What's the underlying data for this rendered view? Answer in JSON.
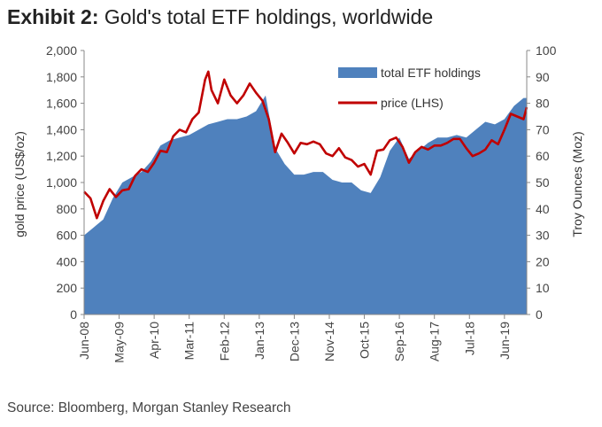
{
  "header": {
    "exhibit": "Exhibit 2:",
    "title": "Gold's total ETF holdings, worldwide"
  },
  "footer": {
    "source": "Source: Bloomberg, Morgan Stanley Research"
  },
  "chart_data": {
    "type": "area",
    "ylabel_left": "gold price (US$/oz)",
    "ylabel_right": "Troy Ounces (Moz)",
    "ylim_left": [
      0,
      2000
    ],
    "ylim_right": [
      0,
      100
    ],
    "yticks_left": [
      "0",
      "200",
      "400",
      "600",
      "800",
      "1,000",
      "1,200",
      "1,400",
      "1,600",
      "1,800",
      "2,000"
    ],
    "yticks_right": [
      "0",
      "10",
      "20",
      "30",
      "40",
      "50",
      "60",
      "70",
      "80",
      "90",
      "100"
    ],
    "xticks": [
      "Jun-08",
      "May-09",
      "Apr-10",
      "Mar-11",
      "Feb-12",
      "Jan-13",
      "Dec-13",
      "Nov-14",
      "Oct-15",
      "Sep-16",
      "Aug-17",
      "Jul-18",
      "Jun-19"
    ],
    "xrange": [
      "2008-06",
      "2020-01"
    ],
    "legend_position": "top-right",
    "colors": {
      "area": "#4f81bd",
      "line": "#c00000",
      "axis": "#888888"
    },
    "series": [
      {
        "name": "total ETF holdings",
        "axis": "right",
        "style": "area",
        "x": [
          "2008-06",
          "2008-09",
          "2008-12",
          "2009-03",
          "2009-06",
          "2009-09",
          "2009-12",
          "2010-03",
          "2010-06",
          "2010-09",
          "2010-12",
          "2011-03",
          "2011-06",
          "2011-09",
          "2011-12",
          "2012-03",
          "2012-06",
          "2012-09",
          "2012-12",
          "2013-03",
          "2013-06",
          "2013-09",
          "2013-12",
          "2014-03",
          "2014-06",
          "2014-09",
          "2014-12",
          "2015-03",
          "2015-06",
          "2015-09",
          "2015-12",
          "2016-03",
          "2016-06",
          "2016-09",
          "2016-12",
          "2017-03",
          "2017-06",
          "2017-09",
          "2017-12",
          "2018-03",
          "2018-06",
          "2018-09",
          "2018-12",
          "2019-03",
          "2019-06",
          "2019-09",
          "2019-12",
          "2020-01"
        ],
        "values": [
          30,
          33,
          36,
          44,
          50,
          52,
          54,
          58,
          64,
          66,
          67,
          68,
          70,
          72,
          73,
          74,
          74,
          75,
          77,
          83,
          63,
          57,
          53,
          53,
          54,
          54,
          51,
          50,
          50,
          47,
          46,
          52,
          62,
          67,
          59,
          62,
          65,
          67,
          67,
          68,
          67,
          70,
          73,
          72,
          74,
          79,
          82,
          82
        ]
      },
      {
        "name": "price (LHS)",
        "axis": "left",
        "style": "line",
        "x": [
          "2008-06",
          "2008-08",
          "2008-10",
          "2008-12",
          "2009-02",
          "2009-04",
          "2009-06",
          "2009-08",
          "2009-10",
          "2009-12",
          "2010-02",
          "2010-04",
          "2010-06",
          "2010-08",
          "2010-10",
          "2010-12",
          "2011-02",
          "2011-04",
          "2011-06",
          "2011-08",
          "2011-09",
          "2011-10",
          "2011-12",
          "2012-02",
          "2012-04",
          "2012-06",
          "2012-08",
          "2012-10",
          "2012-12",
          "2013-02",
          "2013-04",
          "2013-06",
          "2013-08",
          "2013-10",
          "2013-12",
          "2014-02",
          "2014-04",
          "2014-06",
          "2014-08",
          "2014-10",
          "2014-12",
          "2015-02",
          "2015-04",
          "2015-06",
          "2015-08",
          "2015-10",
          "2015-12",
          "2016-02",
          "2016-04",
          "2016-06",
          "2016-08",
          "2016-10",
          "2016-12",
          "2017-02",
          "2017-04",
          "2017-06",
          "2017-08",
          "2017-10",
          "2017-12",
          "2018-02",
          "2018-04",
          "2018-06",
          "2018-08",
          "2018-10",
          "2018-12",
          "2019-02",
          "2019-04",
          "2019-06",
          "2019-08",
          "2019-10",
          "2019-12",
          "2020-01"
        ],
        "values": [
          930,
          880,
          730,
          860,
          950,
          890,
          940,
          950,
          1050,
          1100,
          1080,
          1150,
          1240,
          1230,
          1350,
          1400,
          1380,
          1480,
          1530,
          1780,
          1840,
          1700,
          1600,
          1780,
          1660,
          1600,
          1660,
          1750,
          1680,
          1620,
          1480,
          1230,
          1370,
          1300,
          1220,
          1300,
          1290,
          1310,
          1290,
          1220,
          1200,
          1260,
          1190,
          1170,
          1120,
          1140,
          1060,
          1240,
          1250,
          1320,
          1340,
          1270,
          1150,
          1230,
          1270,
          1250,
          1280,
          1280,
          1300,
          1330,
          1330,
          1260,
          1200,
          1220,
          1250,
          1320,
          1290,
          1400,
          1520,
          1500,
          1480,
          1570
        ]
      }
    ]
  }
}
